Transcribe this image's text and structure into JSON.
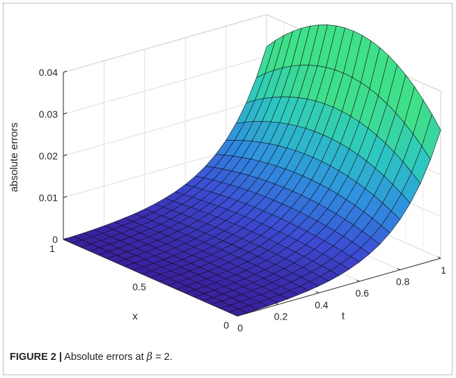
{
  "chart_data": {
    "type": "surface3d",
    "title": "",
    "xlabel": "x",
    "ylabel": "t",
    "zlabel": "absolute errors",
    "xlim": [
      0,
      1
    ],
    "ylim": [
      0,
      1
    ],
    "zlim": [
      0,
      0.04
    ],
    "x_ticks": [
      "0",
      "0.5",
      "1"
    ],
    "y_ticks": [
      "0",
      "0.2",
      "0.4",
      "0.6",
      "0.8",
      "1"
    ],
    "z_ticks": [
      "0",
      "0.01",
      "0.02",
      "0.03",
      "0.04"
    ],
    "grid": true,
    "mesh_size": 20,
    "corner_values": {
      "x0_t0": 0,
      "x1_t0": 0,
      "x0_t1": 0.0307,
      "x1_t1": 0.0323
    },
    "surface_function": "error grows roughly exponentially in t, scaled by x",
    "colormap": [
      "#3a1f9e",
      "#3b4dd4",
      "#2f8fe0",
      "#2bc7c2",
      "#3ee08a"
    ]
  },
  "caption": {
    "label": "FIGURE 2 |",
    "text_before": " Absolute errors at ",
    "symbol": "β",
    "text_after": " = 2."
  }
}
